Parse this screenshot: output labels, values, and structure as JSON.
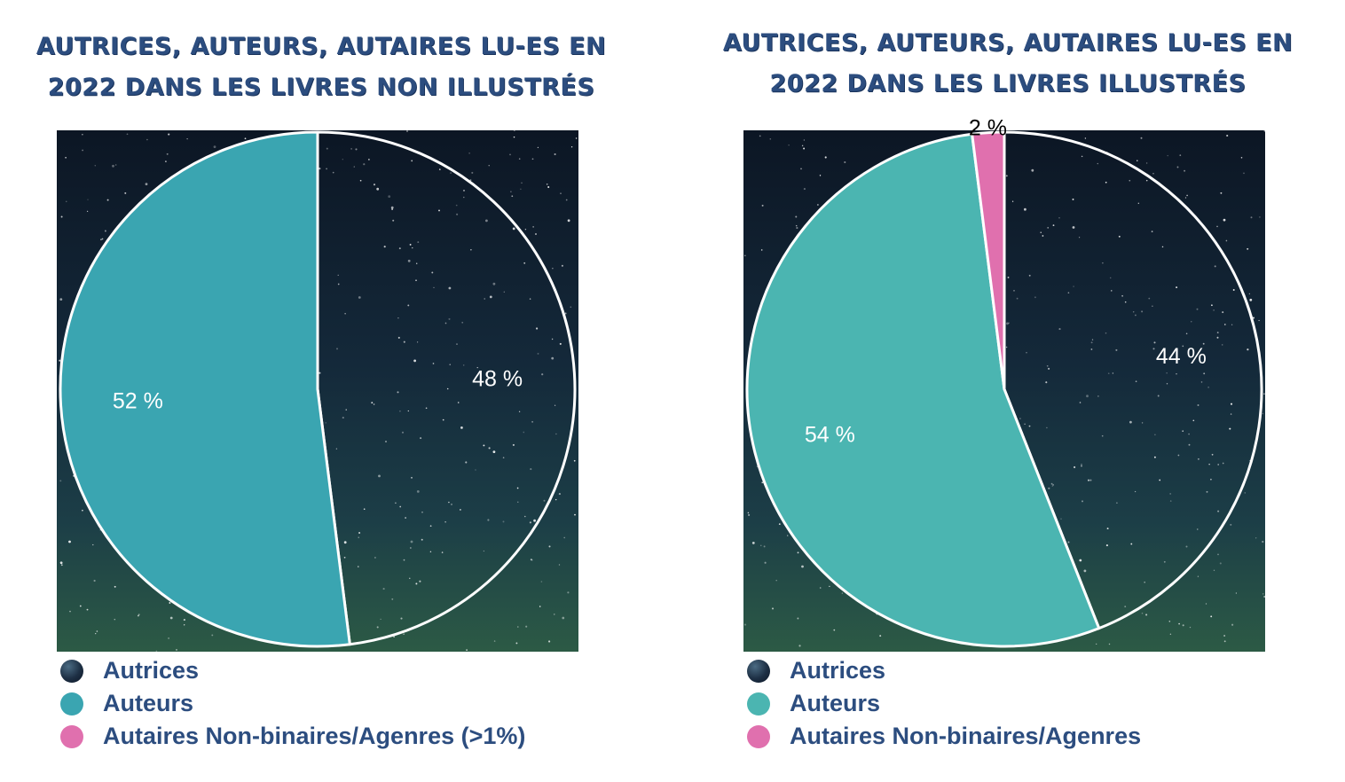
{
  "colors": {
    "autrices": "#16283b",
    "auteurs_left": "#3aa5b1",
    "auteurs_right": "#4bb5b1",
    "non_binaires": "#e070ae",
    "title": "#2c4d7f",
    "slice_border": "#ffffff"
  },
  "chart_data": [
    {
      "type": "pie",
      "title": "AUTRICES, AUTEURS, AUTAIRES LU-ES EN 2022 DANS LES LIVRES NON ILLUSTRÉS",
      "start_angle_deg": 0,
      "slices": [
        {
          "name": "Autrices",
          "value": 48,
          "label": "48 %",
          "color": "#16283b"
        },
        {
          "name": "Auteurs",
          "value": 52,
          "label": "52 %",
          "color": "#3aa5b1"
        }
      ],
      "legend": [
        {
          "name": "Autrices",
          "color": "#16283b"
        },
        {
          "name": "Auteurs",
          "color": "#3aa5b1"
        },
        {
          "name": "Autaires Non-binaires/Agenres (>1%)",
          "color": "#e070ae"
        }
      ],
      "legend_position": "bottom-left",
      "background": "night sky"
    },
    {
      "type": "pie",
      "title": "AUTRICES, AUTEURS, AUTAIRES LU-ES EN 2022 DANS LES LIVRES ILLUSTRÉS",
      "start_angle_deg": 0,
      "slices": [
        {
          "name": "Autrices",
          "value": 44,
          "label": "44 %",
          "color": "#16283b"
        },
        {
          "name": "Auteurs",
          "value": 54,
          "label": "54 %",
          "color": "#4bb5b1"
        },
        {
          "name": "Autaires Non-binaires/Agenres",
          "value": 2,
          "label": "2 %",
          "color": "#e070ae"
        }
      ],
      "legend": [
        {
          "name": "Autrices",
          "color": "#16283b"
        },
        {
          "name": "Auteurs",
          "color": "#4bb5b1"
        },
        {
          "name": "Autaires Non-binaires/Agenres",
          "color": "#e070ae"
        }
      ],
      "legend_position": "bottom-left",
      "background": "night sky"
    }
  ]
}
